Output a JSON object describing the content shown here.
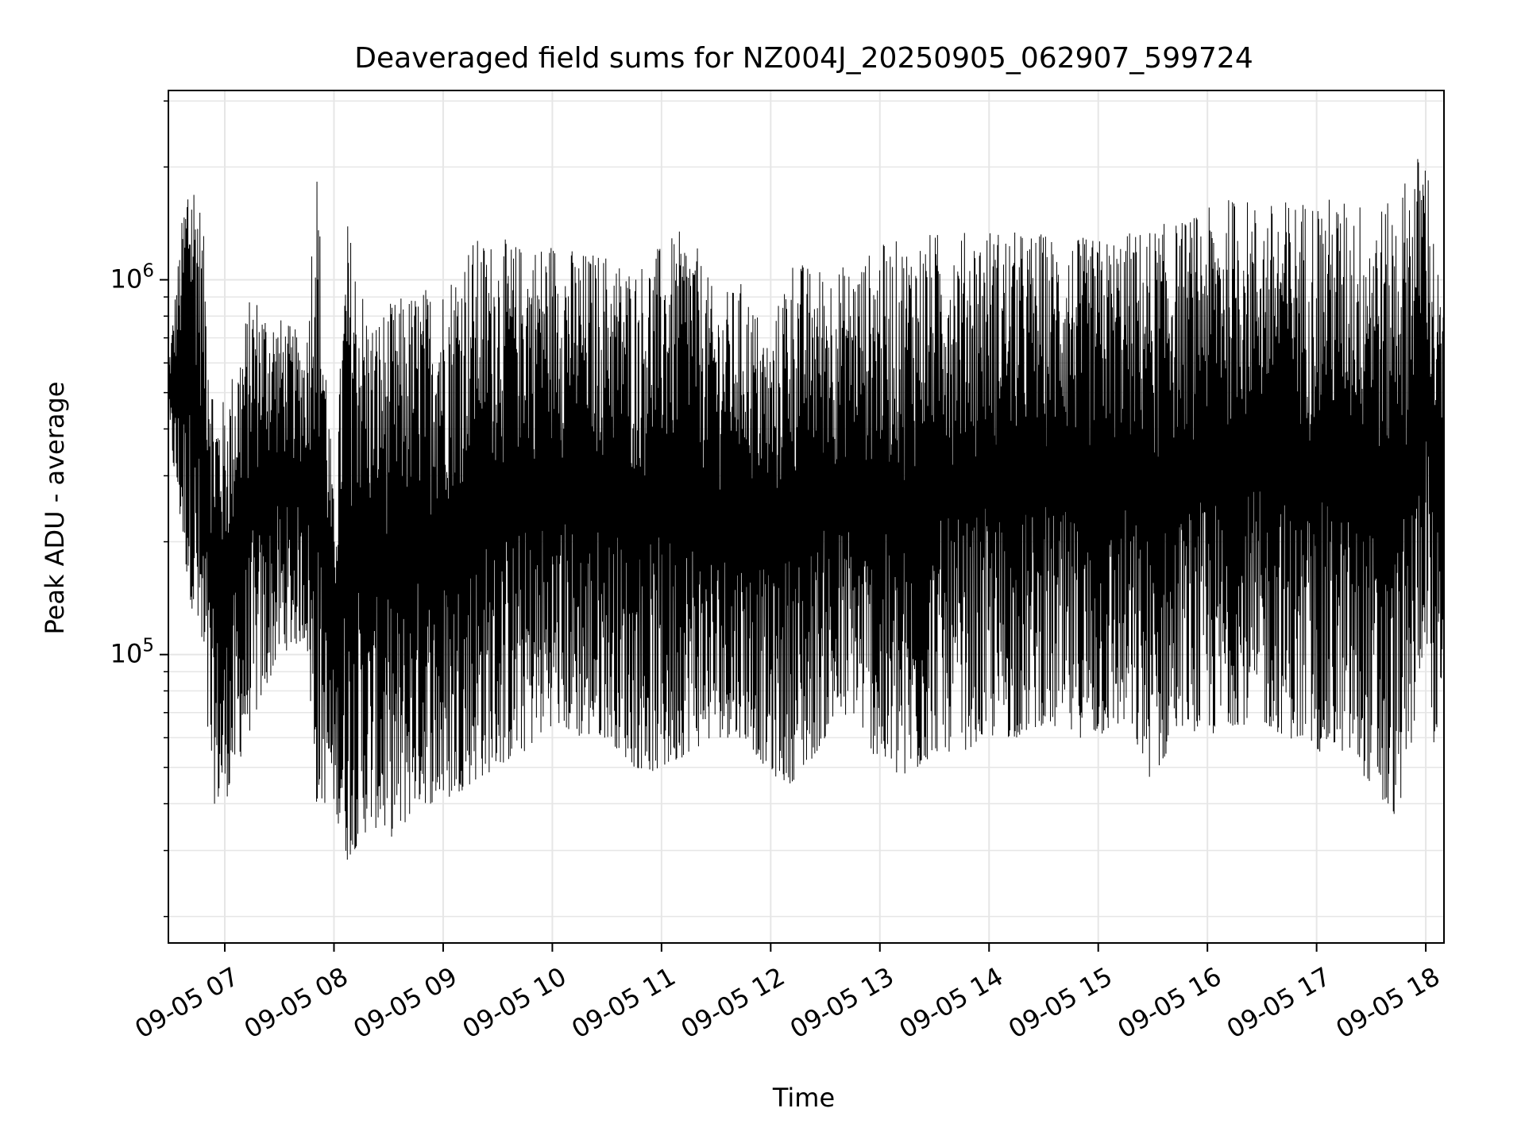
{
  "chart_data": {
    "type": "line",
    "title": "Deaveraged field sums for NZ004J_20250905_062907_599724",
    "xlabel": "Time",
    "ylabel": "Peak ADU - average",
    "y_scale": "log",
    "grid": true,
    "line_color": "#000000",
    "grid_color": "#e6e6e6",
    "xlim": [
      "2025-09-05 06:29",
      "2025-09-05 18:10"
    ],
    "ylim": [
      17000,
      3200000
    ],
    "x_ticks": [
      "2025-09-05 07:00",
      "2025-09-05 08:00",
      "2025-09-05 09:00",
      "2025-09-05 10:00",
      "2025-09-05 11:00",
      "2025-09-05 12:00",
      "2025-09-05 13:00",
      "2025-09-05 14:00",
      "2025-09-05 15:00",
      "2025-09-05 16:00",
      "2025-09-05 17:00",
      "2025-09-05 18:00"
    ],
    "x_tick_labels": [
      "09-05 07",
      "09-05 08",
      "09-05 09",
      "09-05 10",
      "09-05 11",
      "09-05 12",
      "09-05 13",
      "09-05 14",
      "09-05 15",
      "09-05 16",
      "09-05 17",
      "09-05 18"
    ],
    "y_ticks": [
      100000,
      1000000
    ],
    "y_tick_labels": [
      {
        "base": "10",
        "exp": "5"
      },
      {
        "base": "10",
        "exp": "6"
      }
    ],
    "series": [
      {
        "x": [
          "2025-09-05 06:29",
          "2025-09-05 06:40",
          "2025-09-05 06:45",
          "2025-09-05 06:50",
          "2025-09-05 06:54",
          "2025-09-05 07:00",
          "2025-09-05 07:15",
          "2025-09-05 07:30",
          "2025-09-05 07:45",
          "2025-09-05 07:50",
          "2025-09-05 08:00",
          "2025-09-05 08:07",
          "2025-09-05 08:20",
          "2025-09-05 08:35",
          "2025-09-05 08:45",
          "2025-09-05 09:00",
          "2025-09-05 09:15",
          "2025-09-05 09:30",
          "2025-09-05 09:45",
          "2025-09-05 10:00",
          "2025-09-05 10:15",
          "2025-09-05 10:30",
          "2025-09-05 10:45",
          "2025-09-05 11:00",
          "2025-09-05 11:15",
          "2025-09-05 11:30",
          "2025-09-05 11:45",
          "2025-09-05 12:00",
          "2025-09-05 12:10",
          "2025-09-05 12:20",
          "2025-09-05 12:30",
          "2025-09-05 12:45",
          "2025-09-05 13:00",
          "2025-09-05 13:15",
          "2025-09-05 13:30",
          "2025-09-05 13:45",
          "2025-09-05 14:00",
          "2025-09-05 14:15",
          "2025-09-05 14:30",
          "2025-09-05 14:45",
          "2025-09-05 15:00",
          "2025-09-05 15:15",
          "2025-09-05 15:30",
          "2025-09-05 15:45",
          "2025-09-05 16:00",
          "2025-09-05 16:15",
          "2025-09-05 16:30",
          "2025-09-05 16:45",
          "2025-09-05 17:00",
          "2025-09-05 17:15",
          "2025-09-05 17:30",
          "2025-09-05 17:40",
          "2025-09-05 17:50",
          "2025-09-05 18:00",
          "2025-09-05 18:05",
          "2025-09-05 18:10"
        ],
        "y_high": [
          600000,
          2200000,
          1900000,
          1100000,
          500000,
          480000,
          950000,
          800000,
          700000,
          2400000,
          250000,
          1500000,
          800000,
          900000,
          950000,
          1000000,
          1300000,
          1300000,
          1250000,
          1300000,
          1200000,
          1200000,
          1100000,
          1250000,
          1400000,
          900000,
          1000000,
          700000,
          1200000,
          1100000,
          1100000,
          1100000,
          1250000,
          1300000,
          1350000,
          1350000,
          1400000,
          1350000,
          1350000,
          1300000,
          1300000,
          1350000,
          1400000,
          1450000,
          1550000,
          1700000,
          1600000,
          1650000,
          1700000,
          1650000,
          1650000,
          1600000,
          1950000,
          2400000,
          1250000,
          800000
        ],
        "y_low": [
          400000,
          150000,
          110000,
          60000,
          40000,
          40000,
          65000,
          100000,
          110000,
          40000,
          40000,
          28000,
          35000,
          32000,
          40000,
          40000,
          45000,
          50000,
          55000,
          65000,
          60000,
          60000,
          50000,
          48000,
          55000,
          60000,
          60000,
          48000,
          45000,
          50000,
          60000,
          70000,
          50000,
          45000,
          55000,
          55000,
          60000,
          60000,
          65000,
          60000,
          60000,
          65000,
          45000,
          65000,
          60000,
          65000,
          65000,
          60000,
          55000,
          55000,
          45000,
          35000,
          45000,
          120000,
          50000,
          100000
        ]
      }
    ]
  }
}
